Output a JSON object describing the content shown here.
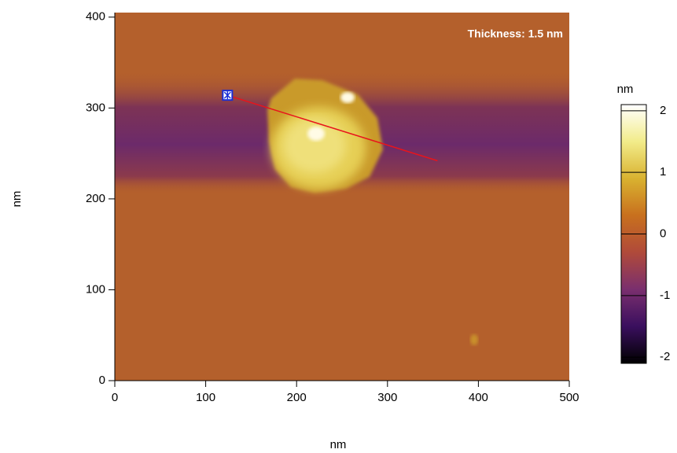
{
  "chart_data": {
    "type": "image",
    "annotation": "Thickness: 1.5 nm",
    "xlabel": "nm",
    "ylabel": "nm",
    "xlim": [
      0,
      500
    ],
    "ylim": [
      0,
      405
    ],
    "xticks": [
      0,
      100,
      200,
      300,
      400,
      500
    ],
    "yticks": [
      0,
      100,
      200,
      300,
      400
    ],
    "colorbar": {
      "label": "nm",
      "clim": [
        -2.1,
        2.1
      ],
      "ticks": [
        -2,
        -1,
        0,
        1,
        2
      ],
      "colors": [
        "#000000",
        "#3a0f5e",
        "#7a2f6e",
        "#b04a3a",
        "#c8701e",
        "#d9b230",
        "#f2ec8a",
        "#ffffff"
      ]
    },
    "profile_line": {
      "x": [
        124,
        355
      ],
      "y": [
        314,
        242
      ],
      "color": "#e8141c",
      "marker_color": "#1a2fd6"
    }
  }
}
